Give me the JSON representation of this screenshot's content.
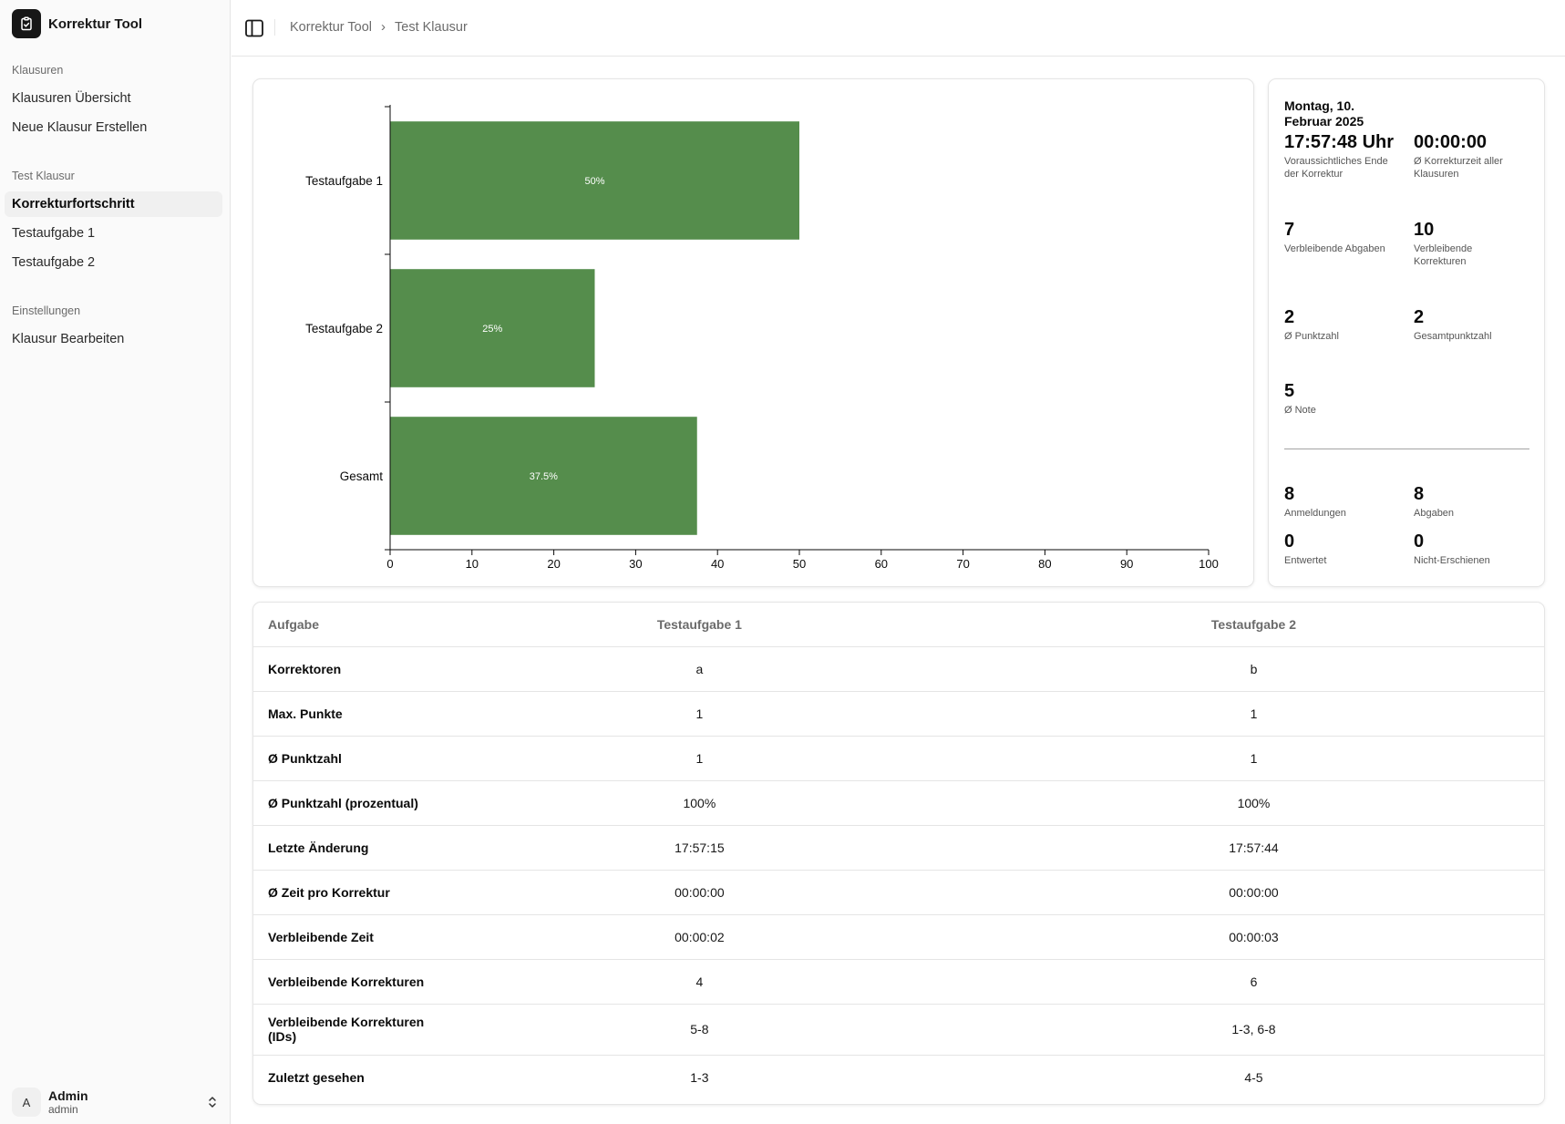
{
  "app": {
    "name": "Korrektur Tool"
  },
  "sidebar": {
    "groups": [
      {
        "label": "Klausuren",
        "items": [
          {
            "label": "Klausuren Übersicht"
          },
          {
            "label": "Neue Klausur Erstellen"
          }
        ]
      },
      {
        "label": "Test Klausur",
        "items": [
          {
            "label": "Korrekturfortschritt",
            "active": true
          },
          {
            "label": "Testaufgabe 1"
          },
          {
            "label": "Testaufgabe 2"
          }
        ]
      },
      {
        "label": "Einstellungen",
        "items": [
          {
            "label": "Klausur Bearbeiten"
          }
        ]
      }
    ],
    "user": {
      "initial": "A",
      "name": "Admin",
      "login": "admin"
    }
  },
  "breadcrumb": {
    "root": "Korrektur Tool",
    "current": "Test Klausur"
  },
  "chart_data": {
    "type": "bar",
    "orientation": "horizontal",
    "categories": [
      "Testaufgabe 1",
      "Testaufgabe 2",
      "Gesamt"
    ],
    "values": [
      50,
      25,
      37.5
    ],
    "data_labels": [
      "50%",
      "25%",
      "37.5%"
    ],
    "xlim": [
      0,
      100
    ],
    "x_ticks": [
      "0",
      "10",
      "20",
      "30",
      "40",
      "50",
      "60",
      "70",
      "80",
      "90",
      "100"
    ],
    "bar_color": "#558d4c",
    "grid": false
  },
  "stats": {
    "date": "Montag, 10. Februar 2025",
    "end_time": {
      "value": "17:57:48 Uhr",
      "label": "Voraussichtliches Ende der Korrektur"
    },
    "avg_time_all": {
      "value": "00:00:00",
      "label": "Ø Korrekturzeit aller Klausuren"
    },
    "remaining_submissions": {
      "value": "7",
      "label": "Verbleibende Abgaben"
    },
    "remaining_corrections": {
      "value": "10",
      "label": "Verbleibende Korrekturen"
    },
    "avg_points": {
      "value": "2",
      "label": "Ø Punktzahl"
    },
    "total_points": {
      "value": "2",
      "label": "Gesamtpunktzahl"
    },
    "avg_grade": {
      "value": "5",
      "label": "Ø Note"
    },
    "registrations": {
      "value": "8",
      "label": "Anmeldungen"
    },
    "submissions": {
      "value": "8",
      "label": "Abgaben"
    },
    "invalidated": {
      "value": "0",
      "label": "Entwertet"
    },
    "no_show": {
      "value": "0",
      "label": "Nicht-Erschienen"
    }
  },
  "table": {
    "headers": [
      "Aufgabe",
      "Testaufgabe 1",
      "Testaufgabe 2"
    ],
    "rows": [
      {
        "label": "Korrektoren",
        "values": [
          "a",
          "b"
        ]
      },
      {
        "label": "Max. Punkte",
        "values": [
          "1",
          "1"
        ]
      },
      {
        "label": "Ø Punktzahl",
        "values": [
          "1",
          "1"
        ]
      },
      {
        "label": "Ø Punktzahl (prozentual)",
        "values": [
          "100%",
          "100%"
        ]
      },
      {
        "label": "Letzte Änderung",
        "values": [
          "17:57:15",
          "17:57:44"
        ]
      },
      {
        "label": "Ø Zeit pro Korrektur",
        "values": [
          "00:00:00",
          "00:00:00"
        ]
      },
      {
        "label": "Verbleibende Zeit",
        "values": [
          "00:00:02",
          "00:00:03"
        ]
      },
      {
        "label": "Verbleibende Korrekturen",
        "values": [
          "4",
          "6"
        ]
      },
      {
        "label": "Verbleibende Korrekturen (IDs)",
        "values": [
          "5-8",
          "1-3, 6-8"
        ]
      },
      {
        "label": "Zuletzt gesehen",
        "values": [
          "1-3",
          "4-5"
        ]
      }
    ]
  }
}
